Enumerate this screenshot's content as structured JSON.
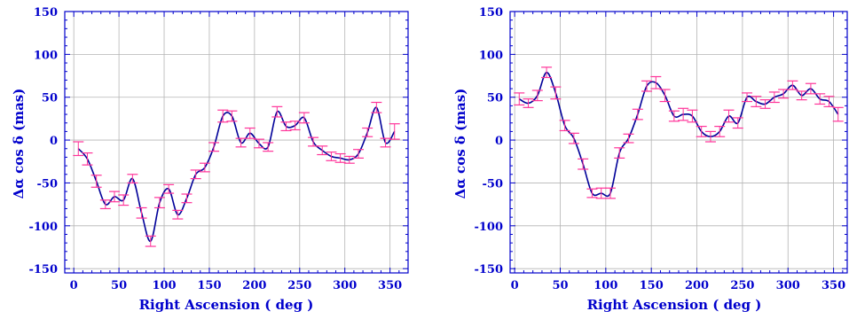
{
  "colors": {
    "axis": "#0000cc",
    "grid": "#b4b4b4",
    "curve": "#000099",
    "error_bars": "#ff3399",
    "text": "#0000cc"
  },
  "chart_data": [
    {
      "type": "line",
      "title": "",
      "xlabel": "Right Ascension ( deg )",
      "ylabel": "Δα cos δ  (mas)",
      "xlim": [
        -10,
        370
      ],
      "ylim": [
        -155,
        150
      ],
      "xticks": [
        "0",
        "50",
        "100",
        "150",
        "200",
        "250",
        "300",
        "350"
      ],
      "yticks": [
        "150",
        "100",
        "50",
        "0",
        "-50",
        "-100",
        "-150"
      ],
      "grid": true,
      "series": [
        {
          "x": [
            5,
            15,
            25,
            35,
            45,
            55,
            65,
            75,
            85,
            95,
            105,
            115,
            125,
            135,
            145,
            155,
            165,
            175,
            185,
            195,
            205,
            215,
            225,
            235,
            245,
            255,
            265,
            275,
            285,
            295,
            305,
            315,
            325,
            335,
            345,
            355
          ],
          "y": [
            -10,
            -22,
            -48,
            -75,
            -66,
            -70,
            -45,
            -85,
            -118,
            -73,
            -57,
            -87,
            -68,
            -40,
            -32,
            -8,
            28,
            28,
            -3,
            8,
            -4,
            -8,
            33,
            16,
            17,
            26,
            -2,
            -12,
            -19,
            -21,
            -23,
            -16,
            9,
            38,
            -3,
            10
          ],
          "err": [
            8,
            7,
            7,
            5,
            6,
            6,
            5,
            6,
            6,
            6,
            5,
            5,
            5,
            5,
            5,
            5,
            7,
            6,
            5,
            6,
            5,
            5,
            6,
            5,
            5,
            6,
            5,
            5,
            5,
            5,
            4,
            5,
            5,
            6,
            5,
            9
          ]
        }
      ]
    },
    {
      "type": "line",
      "title": "",
      "xlabel": "Right Ascension ( deg )",
      "ylabel": "Δα cos δ  (mas)",
      "xlim": [
        -5,
        365
      ],
      "ylim": [
        -155,
        150
      ],
      "xticks": [
        "0",
        "50",
        "100",
        "150",
        "200",
        "250",
        "300",
        "350"
      ],
      "yticks": [
        "150",
        "100",
        "50",
        "0",
        "-50",
        "-100",
        "-150"
      ],
      "grid": true,
      "series": [
        {
          "x": [
            5,
            15,
            25,
            35,
            45,
            55,
            65,
            75,
            85,
            95,
            105,
            115,
            125,
            135,
            145,
            155,
            165,
            175,
            185,
            195,
            205,
            215,
            225,
            235,
            245,
            255,
            265,
            275,
            285,
            295,
            305,
            315,
            325,
            335,
            345,
            355
          ],
          "y": [
            48,
            43,
            52,
            79,
            55,
            17,
            2,
            -28,
            -62,
            -62,
            -62,
            -15,
            2,
            30,
            63,
            67,
            52,
            28,
            30,
            28,
            10,
            4,
            10,
            28,
            20,
            50,
            45,
            42,
            50,
            54,
            64,
            52,
            60,
            48,
            45,
            30
          ],
          "err": [
            7,
            5,
            6,
            6,
            7,
            6,
            6,
            6,
            5,
            6,
            6,
            6,
            5,
            6,
            6,
            7,
            7,
            6,
            7,
            7,
            6,
            6,
            6,
            7,
            6,
            5,
            6,
            5,
            6,
            5,
            5,
            5,
            6,
            6,
            6,
            8
          ]
        }
      ]
    }
  ]
}
